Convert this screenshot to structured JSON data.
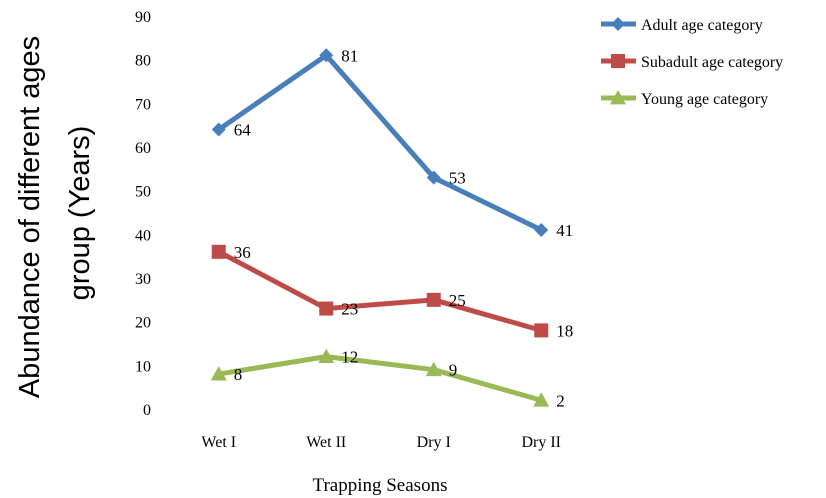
{
  "chart_data": {
    "type": "line",
    "title": "",
    "xlabel": "Trapping Seasons",
    "ylabel_line1": "Abundance of different ages",
    "ylabel_line2": "group (Years)",
    "categories": [
      "Wet I",
      "Wet II",
      "Dry I",
      "Dry II"
    ],
    "ylim": [
      0,
      90
    ],
    "yticks": [
      0,
      10,
      20,
      30,
      40,
      50,
      60,
      70,
      80,
      90
    ],
    "grid": false,
    "legend_position": "top-right",
    "series": [
      {
        "name": "Adult age category",
        "values": [
          64,
          81,
          53,
          41
        ],
        "color": "#4a7ebb",
        "marker": "diamond"
      },
      {
        "name": "Subadult age category",
        "values": [
          36,
          23,
          25,
          18
        ],
        "color": "#be4b48",
        "marker": "square"
      },
      {
        "name": "Young age category",
        "values": [
          8,
          12,
          9,
          2
        ],
        "color": "#98b954",
        "marker": "triangle"
      }
    ]
  }
}
